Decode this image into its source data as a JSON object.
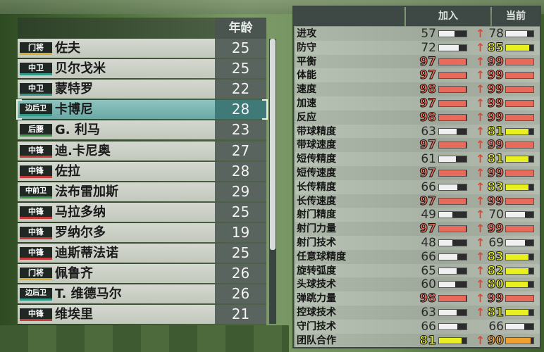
{
  "colors": {
    "gk": "#d8b030",
    "df": "#2f9a8a",
    "mf": "#3a9a4a",
    "fw": "#c83a3a",
    "normal": "#f0f0f0",
    "good": "#e8f020",
    "great": "#f0a030",
    "elite": "#e86a5a"
  },
  "roster": {
    "age_header": "年龄",
    "selected_index": 3,
    "players": [
      {
        "pos": "门将",
        "role": "gk",
        "name": "佐夫",
        "age": "25"
      },
      {
        "pos": "中卫",
        "role": "df",
        "name": "贝尔戈米",
        "age": "25"
      },
      {
        "pos": "中卫",
        "role": "df",
        "name": "蒙特罗",
        "age": "22"
      },
      {
        "pos": "边后卫",
        "role": "df",
        "name": "卡博尼",
        "age": "28"
      },
      {
        "pos": "后腰",
        "role": "mf",
        "name": "G. 利马",
        "age": "23"
      },
      {
        "pos": "中锋",
        "role": "fw",
        "name": "迪.卡尼奥",
        "age": "27"
      },
      {
        "pos": "中锋",
        "role": "fw",
        "name": "佐拉",
        "age": "28"
      },
      {
        "pos": "中前卫",
        "role": "mf",
        "name": "法布雷加斯",
        "age": "29"
      },
      {
        "pos": "中锋",
        "role": "fw",
        "name": "马拉多纳",
        "age": "25"
      },
      {
        "pos": "中锋",
        "role": "fw",
        "name": "罗纳尔多",
        "age": "19"
      },
      {
        "pos": "中锋",
        "role": "fw",
        "name": "迪斯蒂法诺",
        "age": "25"
      },
      {
        "pos": "门将",
        "role": "gk",
        "name": "佩鲁齐",
        "age": "26"
      },
      {
        "pos": "边后卫",
        "role": "df",
        "name": "T. 维德马尔",
        "age": "26"
      },
      {
        "pos": "中锋",
        "role": "fw",
        "name": "维埃里",
        "age": "21"
      }
    ]
  },
  "stats": {
    "join_header": "加入",
    "current_header": "当前",
    "rows": [
      {
        "label": "进攻",
        "join": "57",
        "current": "78",
        "up": true
      },
      {
        "label": "防守",
        "join": "72",
        "current": "85",
        "up": true
      },
      {
        "label": "平衡",
        "join": "97",
        "current": "99",
        "up": true
      },
      {
        "label": "体能",
        "join": "97",
        "current": "99",
        "up": true
      },
      {
        "label": "速度",
        "join": "98",
        "current": "99",
        "up": true
      },
      {
        "label": "加速",
        "join": "97",
        "current": "99",
        "up": true
      },
      {
        "label": "反应",
        "join": "98",
        "current": "99",
        "up": true
      },
      {
        "label": "带球精度",
        "join": "63",
        "current": "81",
        "up": true
      },
      {
        "label": "带球速度",
        "join": "97",
        "current": "99",
        "up": true
      },
      {
        "label": "短传精度",
        "join": "61",
        "current": "81",
        "up": true
      },
      {
        "label": "短传速度",
        "join": "97",
        "current": "99",
        "up": true
      },
      {
        "label": "长传精度",
        "join": "66",
        "current": "83",
        "up": true
      },
      {
        "label": "长传速度",
        "join": "97",
        "current": "99",
        "up": true
      },
      {
        "label": "射门精度",
        "join": "49",
        "current": "70",
        "up": true
      },
      {
        "label": "射门力量",
        "join": "97",
        "current": "99",
        "up": true
      },
      {
        "label": "射门技术",
        "join": "48",
        "current": "69",
        "up": true
      },
      {
        "label": "任意球精度",
        "join": "66",
        "current": "83",
        "up": true
      },
      {
        "label": "旋转弧度",
        "join": "65",
        "current": "82",
        "up": true
      },
      {
        "label": "头球技术",
        "join": "60",
        "current": "80",
        "up": true
      },
      {
        "label": "弹跳力量",
        "join": "98",
        "current": "99",
        "up": true
      },
      {
        "label": "控球技术",
        "join": "63",
        "current": "81",
        "up": true
      },
      {
        "label": "守门技术",
        "join": "66",
        "current": "66",
        "up": false
      },
      {
        "label": "团队合作",
        "join": "81",
        "current": "90",
        "up": true
      }
    ]
  },
  "up_arrow_icon": "up-arrow"
}
